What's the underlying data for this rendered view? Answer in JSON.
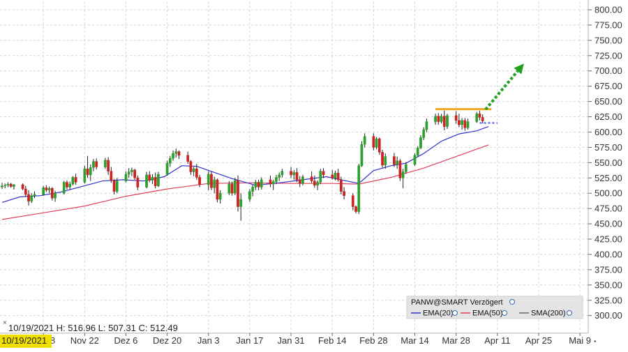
{
  "chart_data": {
    "type": "candlestick",
    "symbol_label": "PANW@SMART Verzögert",
    "ohlc_readout": "10/19/2021  H: 516.96  L: 507.31  C: 512.49",
    "cursor_date_label": "10/19/2021",
    "y_axis": {
      "range": [
        300,
        800
      ],
      "tick_labels": [
        "800.00",
        "775.00",
        "750.00",
        "725.00",
        "700.00",
        "675.00",
        "650.00",
        "625.00",
        "600.00",
        "575.00",
        "550.00",
        "525.00",
        "500.00",
        "475.00",
        "450.00",
        "425.00",
        "400.00",
        "375.00",
        "350.00",
        "325.00",
        "300.00"
      ]
    },
    "x_axis": {
      "tick_labels": [
        "Nov 8",
        "Nov 22",
        "Dez 6",
        "Dez 20",
        "Jan 3",
        "Jan 17",
        "Jan 31",
        "Feb 14",
        "Feb 28",
        "Mar 14",
        "Mar 28",
        "Apr 11",
        "Apr 25",
        "Mai 9"
      ],
      "tick_day_index": [
        14,
        28,
        42,
        56,
        70,
        84,
        98,
        112,
        126,
        140,
        154,
        168,
        182,
        196
      ]
    },
    "grid": true,
    "legend": [
      {
        "name": "EMA(20)",
        "color": "#3333cc"
      },
      {
        "name": "EMA(50)",
        "color": "#e0405a"
      },
      {
        "name": "SMA(200)",
        "color": "#666666"
      }
    ],
    "colors": {
      "up": "#2ca02c",
      "down": "#cc2222",
      "ema20": "#3333cc",
      "ema50": "#e0405a",
      "resistance": "#f5a623",
      "arrow": "#22a022",
      "projection": "#4455ee",
      "label_bg": "#f0e000"
    },
    "candles": [
      {
        "d": 0,
        "o": 510,
        "h": 517,
        "l": 507,
        "c": 512
      },
      {
        "d": 1,
        "o": 512,
        "h": 516,
        "l": 508,
        "c": 513
      },
      {
        "d": 2,
        "o": 513,
        "h": 518,
        "l": 510,
        "c": 515
      },
      {
        "d": 3,
        "o": 515,
        "h": 517,
        "l": 509,
        "c": 511
      },
      {
        "d": 4,
        "o": 511,
        "h": 515,
        "l": 506,
        "c": 514
      },
      {
        "d": 7,
        "o": 514,
        "h": 516,
        "l": 505,
        "c": 507
      },
      {
        "d": 8,
        "o": 507,
        "h": 512,
        "l": 494,
        "c": 498
      },
      {
        "d": 9,
        "o": 498,
        "h": 505,
        "l": 480,
        "c": 487
      },
      {
        "d": 10,
        "o": 487,
        "h": 500,
        "l": 484,
        "c": 496
      },
      {
        "d": 11,
        "o": 496,
        "h": 503,
        "l": 492,
        "c": 498
      },
      {
        "d": 14,
        "o": 498,
        "h": 512,
        "l": 496,
        "c": 509
      },
      {
        "d": 15,
        "o": 509,
        "h": 513,
        "l": 502,
        "c": 505
      },
      {
        "d": 16,
        "o": 505,
        "h": 511,
        "l": 500,
        "c": 508
      },
      {
        "d": 17,
        "o": 508,
        "h": 510,
        "l": 488,
        "c": 492
      },
      {
        "d": 18,
        "o": 492,
        "h": 504,
        "l": 486,
        "c": 500
      },
      {
        "d": 21,
        "o": 500,
        "h": 520,
        "l": 498,
        "c": 518
      },
      {
        "d": 22,
        "o": 518,
        "h": 521,
        "l": 506,
        "c": 510
      },
      {
        "d": 23,
        "o": 510,
        "h": 519,
        "l": 506,
        "c": 515
      },
      {
        "d": 24,
        "o": 515,
        "h": 528,
        "l": 513,
        "c": 526
      },
      {
        "d": 25,
        "o": 526,
        "h": 532,
        "l": 514,
        "c": 518
      },
      {
        "d": 28,
        "o": 518,
        "h": 545,
        "l": 516,
        "c": 540
      },
      {
        "d": 29,
        "o": 540,
        "h": 561,
        "l": 525,
        "c": 530
      },
      {
        "d": 30,
        "o": 530,
        "h": 547,
        "l": 520,
        "c": 542
      },
      {
        "d": 31,
        "o": 542,
        "h": 556,
        "l": 536,
        "c": 552
      },
      {
        "d": 32,
        "o": 552,
        "h": 557,
        "l": 539,
        "c": 543
      },
      {
        "d": 35,
        "o": 543,
        "h": 558,
        "l": 540,
        "c": 554
      },
      {
        "d": 36,
        "o": 554,
        "h": 559,
        "l": 530,
        "c": 536
      },
      {
        "d": 37,
        "o": 536,
        "h": 543,
        "l": 517,
        "c": 521
      },
      {
        "d": 38,
        "o": 521,
        "h": 523,
        "l": 498,
        "c": 503
      },
      {
        "d": 39,
        "o": 503,
        "h": 525,
        "l": 500,
        "c": 520
      },
      {
        "d": 42,
        "o": 520,
        "h": 536,
        "l": 518,
        "c": 531
      },
      {
        "d": 43,
        "o": 531,
        "h": 541,
        "l": 525,
        "c": 535
      },
      {
        "d": 44,
        "o": 535,
        "h": 542,
        "l": 528,
        "c": 538
      },
      {
        "d": 45,
        "o": 538,
        "h": 540,
        "l": 522,
        "c": 525
      },
      {
        "d": 46,
        "o": 525,
        "h": 529,
        "l": 505,
        "c": 510
      },
      {
        "d": 49,
        "o": 510,
        "h": 535,
        "l": 508,
        "c": 530
      },
      {
        "d": 50,
        "o": 530,
        "h": 536,
        "l": 518,
        "c": 521
      },
      {
        "d": 51,
        "o": 521,
        "h": 531,
        "l": 515,
        "c": 526
      },
      {
        "d": 52,
        "o": 526,
        "h": 534,
        "l": 508,
        "c": 512
      },
      {
        "d": 53,
        "o": 512,
        "h": 535,
        "l": 510,
        "c": 531
      },
      {
        "d": 56,
        "o": 531,
        "h": 553,
        "l": 529,
        "c": 549
      },
      {
        "d": 57,
        "o": 549,
        "h": 561,
        "l": 543,
        "c": 557
      },
      {
        "d": 58,
        "o": 557,
        "h": 570,
        "l": 553,
        "c": 565
      },
      {
        "d": 59,
        "o": 565,
        "h": 573,
        "l": 558,
        "c": 568
      },
      {
        "d": 60,
        "o": 568,
        "h": 570,
        "l": 556,
        "c": 562
      },
      {
        "d": 63,
        "o": 562,
        "h": 568,
        "l": 548,
        "c": 552
      },
      {
        "d": 64,
        "o": 552,
        "h": 554,
        "l": 530,
        "c": 535
      },
      {
        "d": 65,
        "o": 535,
        "h": 543,
        "l": 528,
        "c": 540
      },
      {
        "d": 66,
        "o": 540,
        "h": 548,
        "l": 522,
        "c": 526
      },
      {
        "d": 67,
        "o": 526,
        "h": 530,
        "l": 510,
        "c": 514
      },
      {
        "d": 70,
        "o": 514,
        "h": 536,
        "l": 505,
        "c": 531
      },
      {
        "d": 71,
        "o": 531,
        "h": 535,
        "l": 505,
        "c": 509
      },
      {
        "d": 72,
        "o": 509,
        "h": 527,
        "l": 500,
        "c": 522
      },
      {
        "d": 73,
        "o": 522,
        "h": 524,
        "l": 485,
        "c": 490
      },
      {
        "d": 74,
        "o": 490,
        "h": 505,
        "l": 483,
        "c": 500
      },
      {
        "d": 77,
        "o": 500,
        "h": 520,
        "l": 497,
        "c": 515
      },
      {
        "d": 78,
        "o": 515,
        "h": 519,
        "l": 496,
        "c": 500
      },
      {
        "d": 79,
        "o": 500,
        "h": 525,
        "l": 497,
        "c": 521
      },
      {
        "d": 80,
        "o": 521,
        "h": 529,
        "l": 470,
        "c": 478
      },
      {
        "d": 81,
        "o": 478,
        "h": 500,
        "l": 455,
        "c": 490
      },
      {
        "d": 84,
        "o": 490,
        "h": 507,
        "l": 486,
        "c": 503
      },
      {
        "d": 85,
        "o": 503,
        "h": 514,
        "l": 495,
        "c": 510
      },
      {
        "d": 86,
        "o": 510,
        "h": 522,
        "l": 505,
        "c": 518
      },
      {
        "d": 87,
        "o": 518,
        "h": 522,
        "l": 505,
        "c": 510
      },
      {
        "d": 88,
        "o": 510,
        "h": 526,
        "l": 506,
        "c": 522
      },
      {
        "d": 91,
        "o": 522,
        "h": 529,
        "l": 510,
        "c": 515
      },
      {
        "d": 92,
        "o": 515,
        "h": 522,
        "l": 505,
        "c": 519
      },
      {
        "d": 93,
        "o": 519,
        "h": 530,
        "l": 515,
        "c": 526
      },
      {
        "d": 94,
        "o": 526,
        "h": 534,
        "l": 520,
        "c": 530
      },
      {
        "d": 95,
        "o": 530,
        "h": 540,
        "l": 526,
        "c": 536
      },
      {
        "d": 98,
        "o": 536,
        "h": 543,
        "l": 525,
        "c": 530
      },
      {
        "d": 99,
        "o": 530,
        "h": 538,
        "l": 522,
        "c": 534
      },
      {
        "d": 100,
        "o": 534,
        "h": 541,
        "l": 518,
        "c": 522
      },
      {
        "d": 101,
        "o": 522,
        "h": 528,
        "l": 510,
        "c": 516
      },
      {
        "d": 102,
        "o": 516,
        "h": 530,
        "l": 513,
        "c": 527
      },
      {
        "d": 105,
        "o": 527,
        "h": 536,
        "l": 517,
        "c": 520
      },
      {
        "d": 106,
        "o": 520,
        "h": 529,
        "l": 509,
        "c": 513
      },
      {
        "d": 107,
        "o": 513,
        "h": 521,
        "l": 505,
        "c": 518
      },
      {
        "d": 108,
        "o": 518,
        "h": 540,
        "l": 515,
        "c": 536
      },
      {
        "d": 109,
        "o": 536,
        "h": 541,
        "l": 525,
        "c": 530
      },
      {
        "d": 112,
        "o": 530,
        "h": 538,
        "l": 522,
        "c": 525
      },
      {
        "d": 113,
        "o": 525,
        "h": 537,
        "l": 521,
        "c": 533
      },
      {
        "d": 114,
        "o": 533,
        "h": 540,
        "l": 519,
        "c": 522
      },
      {
        "d": 115,
        "o": 522,
        "h": 527,
        "l": 498,
        "c": 503
      },
      {
        "d": 116,
        "o": 503,
        "h": 510,
        "l": 490,
        "c": 496
      },
      {
        "d": 119,
        "o": 496,
        "h": 500,
        "l": 472,
        "c": 478
      },
      {
        "d": 120,
        "o": 478,
        "h": 480,
        "l": 467,
        "c": 470
      },
      {
        "d": 121,
        "o": 470,
        "h": 548,
        "l": 466,
        "c": 545
      },
      {
        "d": 122,
        "o": 545,
        "h": 585,
        "l": 543,
        "c": 580
      },
      {
        "d": 123,
        "o": 580,
        "h": 598,
        "l": 575,
        "c": 593
      },
      {
        "d": 126,
        "o": 593,
        "h": 598,
        "l": 570,
        "c": 575
      },
      {
        "d": 127,
        "o": 575,
        "h": 592,
        "l": 572,
        "c": 589
      },
      {
        "d": 128,
        "o": 589,
        "h": 591,
        "l": 563,
        "c": 567
      },
      {
        "d": 129,
        "o": 567,
        "h": 571,
        "l": 542,
        "c": 546
      },
      {
        "d": 130,
        "o": 546,
        "h": 565,
        "l": 540,
        "c": 560
      },
      {
        "d": 133,
        "o": 560,
        "h": 566,
        "l": 543,
        "c": 547
      },
      {
        "d": 134,
        "o": 547,
        "h": 560,
        "l": 540,
        "c": 553
      },
      {
        "d": 135,
        "o": 553,
        "h": 556,
        "l": 520,
        "c": 525
      },
      {
        "d": 136,
        "o": 525,
        "h": 540,
        "l": 508,
        "c": 535
      },
      {
        "d": 137,
        "o": 535,
        "h": 551,
        "l": 532,
        "c": 547
      },
      {
        "d": 140,
        "o": 547,
        "h": 565,
        "l": 545,
        "c": 562
      },
      {
        "d": 141,
        "o": 562,
        "h": 577,
        "l": 560,
        "c": 574
      },
      {
        "d": 142,
        "o": 574,
        "h": 595,
        "l": 572,
        "c": 591
      },
      {
        "d": 143,
        "o": 591,
        "h": 608,
        "l": 587,
        "c": 604
      },
      {
        "d": 144,
        "o": 604,
        "h": 622,
        "l": 600,
        "c": 617
      },
      {
        "d": 147,
        "o": 617,
        "h": 630,
        "l": 612,
        "c": 626
      },
      {
        "d": 148,
        "o": 626,
        "h": 631,
        "l": 612,
        "c": 617
      },
      {
        "d": 149,
        "o": 617,
        "h": 630,
        "l": 614,
        "c": 626
      },
      {
        "d": 150,
        "o": 626,
        "h": 635,
        "l": 603,
        "c": 609
      },
      {
        "d": 151,
        "o": 609,
        "h": 630,
        "l": 605,
        "c": 627
      },
      {
        "d": 154,
        "o": 627,
        "h": 634,
        "l": 614,
        "c": 619
      },
      {
        "d": 155,
        "o": 619,
        "h": 630,
        "l": 608,
        "c": 612
      },
      {
        "d": 156,
        "o": 612,
        "h": 623,
        "l": 604,
        "c": 619
      },
      {
        "d": 157,
        "o": 619,
        "h": 623,
        "l": 602,
        "c": 607
      },
      {
        "d": 158,
        "o": 607,
        "h": 622,
        "l": 604,
        "c": 617
      },
      {
        "d": 161,
        "o": 617,
        "h": 633,
        "l": 615,
        "c": 630
      },
      {
        "d": 162,
        "o": 630,
        "h": 635,
        "l": 619,
        "c": 624
      },
      {
        "d": 163,
        "o": 624,
        "h": 629,
        "l": 614,
        "c": 618
      }
    ],
    "ema20": [
      {
        "d": 0,
        "v": 485
      },
      {
        "d": 6,
        "v": 494
      },
      {
        "d": 13,
        "v": 496
      },
      {
        "d": 20,
        "v": 502
      },
      {
        "d": 27,
        "v": 511
      },
      {
        "d": 34,
        "v": 520
      },
      {
        "d": 41,
        "v": 522
      },
      {
        "d": 48,
        "v": 520
      },
      {
        "d": 55,
        "v": 527
      },
      {
        "d": 61,
        "v": 545
      },
      {
        "d": 66,
        "v": 544
      },
      {
        "d": 72,
        "v": 534
      },
      {
        "d": 78,
        "v": 524
      },
      {
        "d": 86,
        "v": 513
      },
      {
        "d": 94,
        "v": 517
      },
      {
        "d": 102,
        "v": 522
      },
      {
        "d": 110,
        "v": 527
      },
      {
        "d": 117,
        "v": 520
      },
      {
        "d": 121,
        "v": 516
      },
      {
        "d": 126,
        "v": 537
      },
      {
        "d": 132,
        "v": 545
      },
      {
        "d": 137,
        "v": 549
      },
      {
        "d": 143,
        "v": 565
      },
      {
        "d": 149,
        "v": 585
      },
      {
        "d": 155,
        "v": 597
      },
      {
        "d": 161,
        "v": 602
      },
      {
        "d": 165,
        "v": 609
      }
    ],
    "ema50": [
      {
        "d": 0,
        "v": 457
      },
      {
        "d": 14,
        "v": 468
      },
      {
        "d": 28,
        "v": 479
      },
      {
        "d": 42,
        "v": 495
      },
      {
        "d": 56,
        "v": 507
      },
      {
        "d": 70,
        "v": 516
      },
      {
        "d": 84,
        "v": 517
      },
      {
        "d": 98,
        "v": 516
      },
      {
        "d": 112,
        "v": 516
      },
      {
        "d": 121,
        "v": 515
      },
      {
        "d": 132,
        "v": 526
      },
      {
        "d": 143,
        "v": 541
      },
      {
        "d": 154,
        "v": 560
      },
      {
        "d": 165,
        "v": 579
      }
    ],
    "resistance": {
      "level": 637.5,
      "from_day": 147,
      "to_day": 166
    },
    "projection": {
      "level": 615,
      "from_day": 162,
      "to_day": 168
    },
    "target_arrow": {
      "from": {
        "d": 164,
        "v": 637
      },
      "to": {
        "d": 177,
        "v": 712
      }
    }
  }
}
